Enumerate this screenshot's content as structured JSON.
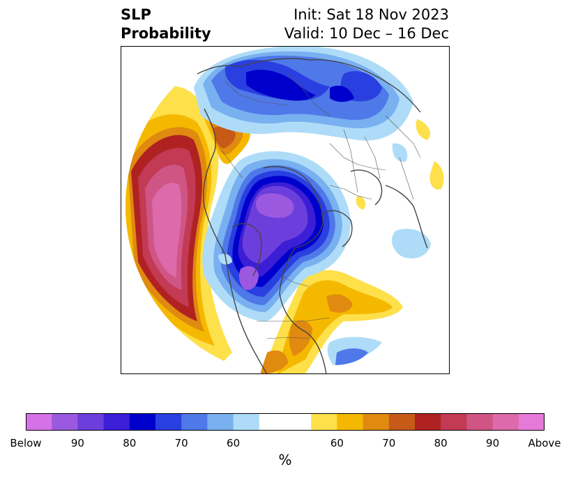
{
  "title": {
    "left_line1": "SLP",
    "left_line2": "Probability",
    "right_line1": "Init: Sat 18 Nov 2023",
    "right_line2": "Valid: 10 Dec – 16 Dec"
  },
  "colorbar": {
    "colors": [
      "#d672e7",
      "#9b59e0",
      "#6c3fdc",
      "#3c1ed6",
      "#0000cc",
      "#2a3fe0",
      "#4f78e8",
      "#78b0f0",
      "#aedcf8",
      "#ffffff",
      "#ffffff",
      "#fde04a",
      "#f5b800",
      "#e08a10",
      "#c85a18",
      "#b02222",
      "#c33a55",
      "#cf5585",
      "#dd6aaa",
      "#e67ad8"
    ],
    "tick_labels": [
      "Below",
      "90",
      "80",
      "70",
      "60",
      "60",
      "70",
      "80",
      "90",
      "Above"
    ],
    "units": "%"
  },
  "colors": {
    "frame": "#000000",
    "coast": "#444444",
    "borders": "#555555"
  }
}
